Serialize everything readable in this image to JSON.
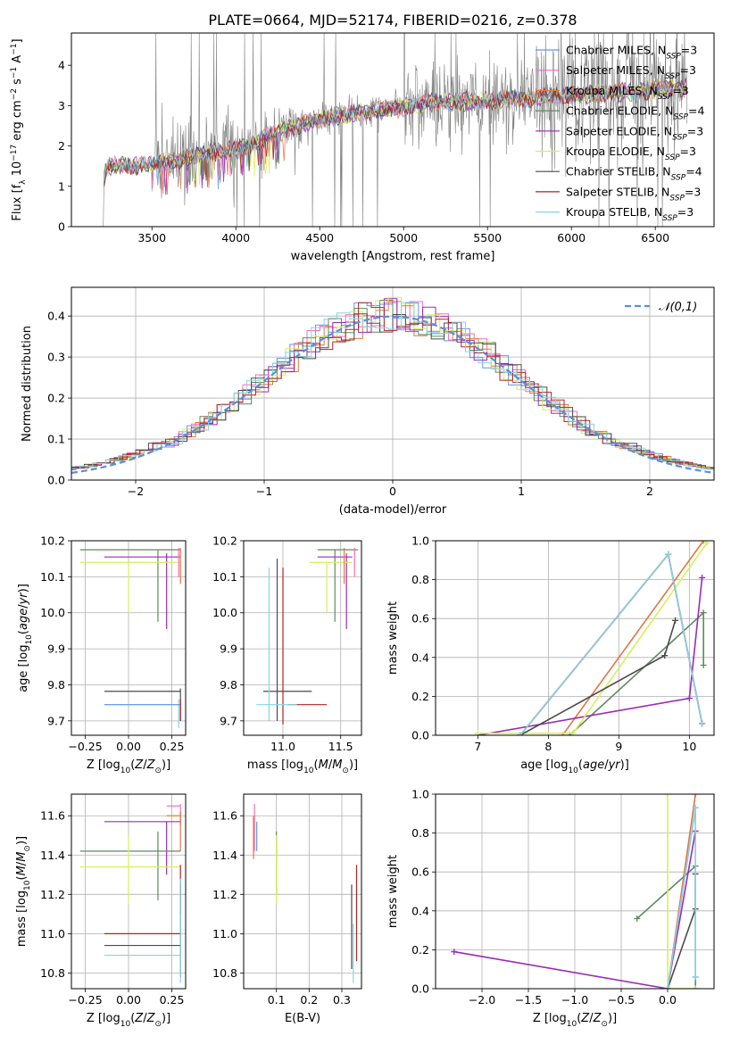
{
  "title": "PLATE=0664, MJD=52174, FIBERID=0216, z=0.378",
  "models": [
    {
      "name": "Chabrier MILES",
      "nssp": "3",
      "color": "#6495ed"
    },
    {
      "name": "Salpeter MILES",
      "nssp": "3",
      "color": "#ff69b4"
    },
    {
      "name": "Kroupa MILES",
      "nssp": "3",
      "color": "#e2773f"
    },
    {
      "name": "Chabrier ELODIE",
      "nssp": "4",
      "color": "#5f8a5f"
    },
    {
      "name": "Salpeter ELODIE",
      "nssp": "3",
      "color": "#9c2ab8"
    },
    {
      "name": "Kroupa ELODIE",
      "nssp": "3",
      "color": "#d7ef5a"
    },
    {
      "name": "Chabrier STELIB",
      "nssp": "4",
      "color": "#4a4a4a"
    },
    {
      "name": "Salpeter STELIB",
      "nssp": "3",
      "color": "#b22222"
    },
    {
      "name": "Kroupa STELIB",
      "nssp": "3",
      "color": "#87d3e4"
    }
  ],
  "data_color": "#808080",
  "chart_data": [
    {
      "id": "spectrum",
      "type": "line",
      "xlabel": "wavelength [Angstrom, rest frame]",
      "ylabel": "Flux [f",
      "ylabel_tail": " 10",
      "ylabel_units": " erg cm",
      "xlim": [
        3020,
        6850
      ],
      "ylim": [
        0,
        4.8
      ],
      "xticks": [
        "3500",
        "4000",
        "4500",
        "5000",
        "5500",
        "6000",
        "6500"
      ],
      "yticks": [
        "0",
        "1",
        "2",
        "3",
        "4"
      ],
      "continuum_x": [
        3200,
        3400,
        3600,
        3800,
        4000,
        4200,
        4400,
        4600,
        4800,
        5000,
        5200,
        5400,
        5600,
        5800,
        6000,
        6200,
        6400,
        6680
      ],
      "continuum_y": [
        1.5,
        1.5,
        1.6,
        1.8,
        1.9,
        2.25,
        2.55,
        2.75,
        2.85,
        2.95,
        3.1,
        3.1,
        3.15,
        3.2,
        3.25,
        3.3,
        3.35,
        3.45
      ]
    },
    {
      "id": "residuals",
      "type": "line",
      "xlabel": "(data-model)/error",
      "ylabel": "Normed distribution",
      "legend": "𝒩(0,1)",
      "legend_position": "top-right",
      "xlim": [
        -2.5,
        2.5
      ],
      "ylim": [
        0,
        0.47
      ],
      "xticks": [
        "−2",
        "−1",
        "0",
        "1",
        "2"
      ],
      "yticks": [
        "0.0",
        "0.1",
        "0.2",
        "0.3",
        "0.4"
      ]
    },
    {
      "id": "age_vs_Z",
      "type": "scatter",
      "xlabel": "Z [log",
      "ylabel": "age  [log",
      "xlim": [
        -0.33,
        0.33
      ],
      "ylim": [
        9.66,
        10.2
      ],
      "xticks": [
        "−0.25",
        "0.00",
        "0.25"
      ],
      "yticks": [
        "9.7",
        "9.8",
        "9.9",
        "10.0",
        "10.1",
        "10.2"
      ]
    },
    {
      "id": "age_vs_mass",
      "type": "scatter",
      "xlabel": "mass [log",
      "xlim": [
        10.66,
        11.68
      ],
      "ylim": [
        9.66,
        10.2
      ],
      "xticks": [
        "11.0",
        "11.5"
      ],
      "yticks": [
        "9.7",
        "9.8",
        "9.9",
        "10.0",
        "10.1",
        "10.2"
      ]
    },
    {
      "id": "weight_vs_age",
      "type": "line",
      "xlabel": "age  [log",
      "ylabel": "mass weight",
      "xlim": [
        6.4,
        10.35
      ],
      "ylim": [
        0,
        1
      ],
      "xticks": [
        "7",
        "8",
        "9",
        "10"
      ],
      "yticks": [
        "0.0",
        "0.2",
        "0.4",
        "0.6",
        "0.8",
        "1.0"
      ],
      "series": [
        {
          "name": "Chabrier MILES",
          "x": [
            7.6,
            9.7,
            10.18
          ],
          "y": [
            0.0,
            0.93,
            0.06
          ]
        },
        {
          "name": "Salpeter MILES",
          "x": [
            7.6,
            9.7,
            10.18
          ],
          "y": [
            0.0,
            0.93,
            0.06
          ]
        },
        {
          "name": "Kroupa MILES",
          "x": [
            8.2,
            10.2
          ],
          "y": [
            0.0,
            1.0
          ]
        },
        {
          "name": "Chabrier ELODIE",
          "x": [
            8.3,
            10.2,
            10.2
          ],
          "y": [
            0.0,
            0.63,
            0.36
          ]
        },
        {
          "name": "Salpeter ELODIE",
          "x": [
            7.0,
            10.0,
            10.18
          ],
          "y": [
            0.0,
            0.19,
            0.81
          ]
        },
        {
          "name": "Kroupa ELODIE",
          "x": [
            7.0,
            8.35,
            10.25
          ],
          "y": [
            0.01,
            0.01,
            0.99
          ]
        },
        {
          "name": "Chabrier STELIB",
          "x": [
            7.6,
            9.65,
            9.8
          ],
          "y": [
            0.0,
            0.41,
            0.59
          ]
        },
        {
          "name": "Salpeter STELIB",
          "x": [
            7.6,
            9.7,
            10.18
          ],
          "y": [
            0.0,
            0.93,
            0.06
          ]
        },
        {
          "name": "Kroupa STELIB",
          "x": [
            7.6,
            9.7,
            10.18
          ],
          "y": [
            0.0,
            0.93,
            0.06
          ]
        }
      ]
    },
    {
      "id": "mass_vs_Z",
      "type": "scatter",
      "xlabel": "Z [log",
      "ylabel": "mass [log",
      "xlim": [
        -0.33,
        0.33
      ],
      "ylim": [
        10.72,
        11.71
      ],
      "xticks": [
        "−0.25",
        "0.00",
        "0.25"
      ],
      "yticks": [
        "10.8",
        "11.0",
        "11.2",
        "11.4",
        "11.6"
      ]
    },
    {
      "id": "mass_vs_EBV",
      "type": "scatter",
      "xlabel": "E(B-V)",
      "xlim": [
        0.0,
        0.36
      ],
      "ylim": [
        10.72,
        11.71
      ],
      "xticks": [
        "0.1",
        "0.2",
        "0.3"
      ],
      "yticks": [
        "10.8",
        "11.0",
        "11.2",
        "11.4",
        "11.6"
      ]
    },
    {
      "id": "weight_vs_Z",
      "type": "line",
      "xlabel": "Z [log",
      "ylabel": "mass weight",
      "xlim": [
        -2.5,
        0.5
      ],
      "ylim": [
        0,
        1
      ],
      "xticks": [
        "−2.0",
        "−1.5",
        "−1.0",
        "−0.5",
        "0.0"
      ],
      "yticks": [
        "0.0",
        "0.2",
        "0.4",
        "0.6",
        "0.8",
        "1.0"
      ],
      "series": [
        {
          "name": "Chabrier MILES",
          "x": [
            0.0,
            0.3,
            0.3
          ],
          "y": [
            0.0,
            0.93,
            0.06
          ]
        },
        {
          "name": "Kroupa MILES",
          "x": [
            0.0,
            0.3
          ],
          "y": [
            0.0,
            1.0
          ]
        },
        {
          "name": "Chabrier ELODIE",
          "x": [
            -0.33,
            0.3,
            0.3
          ],
          "y": [
            0.36,
            0.63,
            0.0
          ]
        },
        {
          "name": "Salpeter ELODIE",
          "x": [
            -2.3,
            0.0,
            0.3
          ],
          "y": [
            0.19,
            0.0,
            0.81
          ]
        },
        {
          "name": "Kroupa ELODIE",
          "x": [
            0.0,
            0.0,
            0.3
          ],
          "y": [
            1.0,
            0.0,
            0.0
          ]
        },
        {
          "name": "Chabrier STELIB",
          "x": [
            0.0,
            0.3,
            0.3
          ],
          "y": [
            0.0,
            0.41,
            0.59
          ]
        },
        {
          "name": "Kroupa STELIB",
          "x": [
            0.0,
            0.3,
            0.3
          ],
          "y": [
            0.0,
            0.93,
            0.06
          ]
        }
      ]
    }
  ]
}
